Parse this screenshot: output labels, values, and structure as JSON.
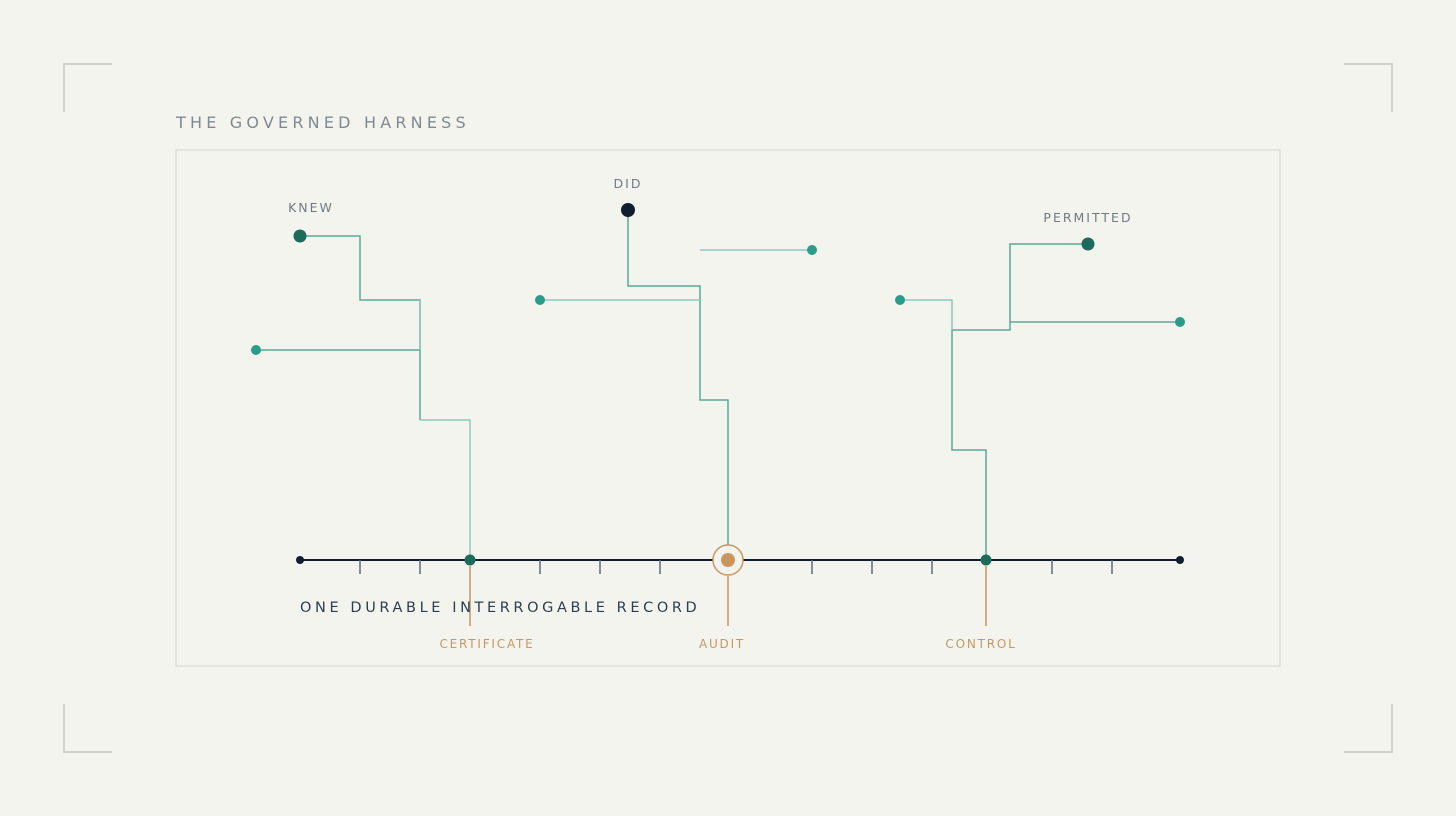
{
  "title": "THE GOVERNED HARNESS",
  "groups": {
    "knew": "KNEW",
    "did": "DID",
    "permitted": "PERMITTED"
  },
  "record_label": "ONE DURABLE INTERROGABLE RECORD",
  "outputs": {
    "certificate": "CERTIFICATE",
    "audit": "AUDIT",
    "control": "CONTROL"
  },
  "colors": {
    "background": "#f4f4ef",
    "frame": "#e3e4df",
    "corner": "#c4c6c4",
    "title": "#7e8a91",
    "group_label": "#6f7b82",
    "record_label": "#2c3e50",
    "spine": "#0f1e30",
    "tick": "#5f6a75",
    "deep_teal": "#1d6b5c",
    "teal": "#2a9d8a",
    "teal_line": "#5aa898",
    "teal_light": "#8ac9bd",
    "gold": "#c9965f",
    "navy_node": "#0f1e30"
  }
}
